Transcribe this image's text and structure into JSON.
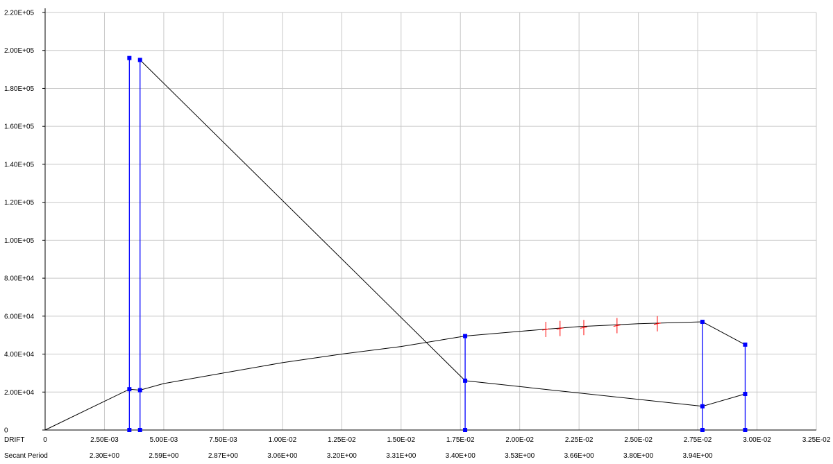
{
  "chart_data": {
    "type": "line",
    "title": "",
    "xlabel": "DRIFT",
    "secondary_xlabel": "Secant Period",
    "xlim": [
      0,
      0.0325
    ],
    "ylim": [
      0,
      220000
    ],
    "grid": true,
    "x_tick_labels": [
      "0",
      "2.50E-03",
      "5.00E-03",
      "7.50E-03",
      "1.00E-02",
      "1.25E-02",
      "1.50E-02",
      "1.75E-02",
      "2.00E-02",
      "2.25E-02",
      "2.50E-02",
      "2.75E-02",
      "3.00E-02",
      "3.25E-02"
    ],
    "y_tick_labels": [
      "0",
      "2.00E+04",
      "4.00E+04",
      "6.00E+04",
      "8.00E+04",
      "1.00E+05",
      "1.20E+05",
      "1.40E+05",
      "1.60E+05",
      "1.80E+05",
      "2.00E+05",
      "2.20E+05"
    ],
    "secant_period_labels": [
      {
        "x": 0.0025,
        "label": "2.30E+00"
      },
      {
        "x": 0.005,
        "label": "2.59E+00"
      },
      {
        "x": 0.0075,
        "label": "2.87E+00"
      },
      {
        "x": 0.01,
        "label": "3.06E+00"
      },
      {
        "x": 0.0125,
        "label": "3.20E+00"
      },
      {
        "x": 0.015,
        "label": "3.31E+00"
      },
      {
        "x": 0.0175,
        "label": "3.40E+00"
      },
      {
        "x": 0.02,
        "label": "3.53E+00"
      },
      {
        "x": 0.0225,
        "label": "3.66E+00"
      },
      {
        "x": 0.025,
        "label": "3.80E+00"
      },
      {
        "x": 0.0275,
        "label": "3.94E+00"
      }
    ],
    "series": [
      {
        "color": "#000000",
        "x": [
          0,
          0.00355,
          0.004,
          0.005,
          0.0075,
          0.01,
          0.0125,
          0.015,
          0.0177,
          0.02,
          0.0225,
          0.025,
          0.0277,
          0.0295
        ],
        "y": [
          0,
          21500,
          21000,
          24500,
          30000,
          35500,
          40000,
          44000,
          49500,
          52000,
          54500,
          56000,
          57000,
          45000
        ]
      },
      {
        "color": "#000000",
        "x": [
          0.004,
          0.0177,
          0.0277,
          0.0295
        ],
        "y": [
          195000,
          26000,
          12500,
          19000
        ]
      }
    ],
    "markers": {
      "color": "#0000ff",
      "stems": [
        {
          "x": 0.00355,
          "y": [
            0,
            21500,
            196000
          ]
        },
        {
          "x": 0.004,
          "y": [
            0,
            21000,
            195000
          ]
        },
        {
          "x": 0.0177,
          "y": [
            0,
            26000,
            49500
          ]
        },
        {
          "x": 0.0277,
          "y": [
            0,
            12500,
            57000
          ]
        },
        {
          "x": 0.0295,
          "y": [
            0,
            19000,
            45000
          ]
        }
      ]
    },
    "red_ticks": {
      "color": "#ff0000",
      "points": [
        {
          "x": 0.0211,
          "y": 53000
        },
        {
          "x": 0.0217,
          "y": 53500
        },
        {
          "x": 0.0227,
          "y": 54000
        },
        {
          "x": 0.0241,
          "y": 55000
        },
        {
          "x": 0.0258,
          "y": 56000
        }
      ]
    }
  }
}
